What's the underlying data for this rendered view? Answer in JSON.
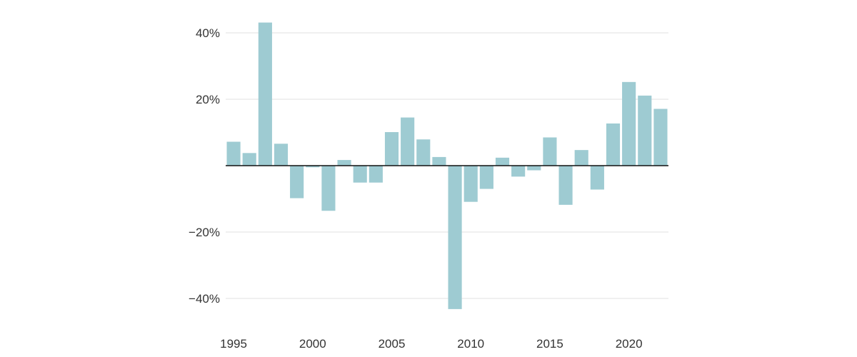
{
  "chart_data": {
    "type": "bar",
    "categories": [
      "1995",
      "1996",
      "1997",
      "1998",
      "1999",
      "2000",
      "2001",
      "2002",
      "2003",
      "2004",
      "2005",
      "2006",
      "2007",
      "2008",
      "2009",
      "2010",
      "2011",
      "2012",
      "2013",
      "2014",
      "2015",
      "2016",
      "2017",
      "2018",
      "2019",
      "2020",
      "2021",
      "2022"
    ],
    "values": [
      7.2,
      3.8,
      43.1,
      6.6,
      -9.8,
      -0.5,
      -13.6,
      1.7,
      -5.1,
      -5.1,
      10.1,
      14.5,
      7.9,
      2.6,
      -43.2,
      -10.9,
      -7.0,
      2.4,
      -3.3,
      -1.4,
      8.5,
      -11.8,
      4.7,
      -7.2,
      12.7,
      25.2,
      21.1,
      17.1
    ],
    "title": "",
    "xlabel": "",
    "ylabel": "",
    "ylim": [
      -50,
      50
    ],
    "y_ticks": [
      {
        "value": 40,
        "label": "40%"
      },
      {
        "value": 20,
        "label": "20%"
      },
      {
        "value": -20,
        "label": "−20%"
      },
      {
        "value": -40,
        "label": "−40%"
      }
    ],
    "x_ticks": [
      "1995",
      "2000",
      "2005",
      "2010",
      "2015",
      "2020"
    ],
    "grid": true,
    "legend": "none",
    "colors": {
      "bar": "#9ecbd2",
      "grid": "#e2e2e2",
      "zero_line": "#111111",
      "text": "#333333"
    }
  }
}
